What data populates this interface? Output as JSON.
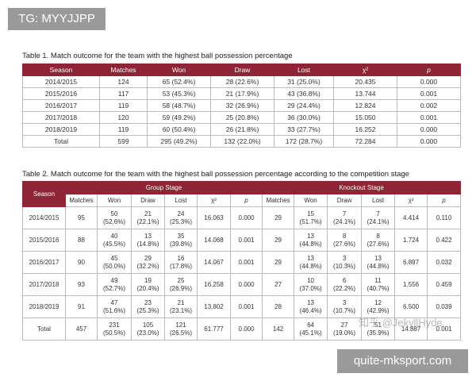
{
  "badge": "TG: MYYJJPP",
  "table1": {
    "title": "Table 1. Match outcome for the team with the highest ball possession percentage",
    "header": [
      "Season",
      "Matches",
      "Won",
      "Draw",
      "Lost",
      "χ²",
      "p"
    ],
    "rows": [
      [
        "2014/2015",
        "124",
        "65 (52.4%)",
        "28 (22.6%)",
        "31 (25.0%)",
        "20.435",
        "0.000"
      ],
      [
        "2015/2016",
        "117",
        "53 (45.3%)",
        "21 (17.9%)",
        "43 (36.8%)",
        "13.744",
        "0.001"
      ],
      [
        "2016/2017",
        "119",
        "58 (48.7%)",
        "32 (26.9%)",
        "29 (24.4%)",
        "12.824",
        "0.002"
      ],
      [
        "2017/2018",
        "120",
        "59 (49.2%)",
        "25 (20.8%)",
        "36 (30.0%)",
        "15.050",
        "0.001"
      ],
      [
        "2018/2019",
        "119",
        "60 (50.4%)",
        "26 (21.8%)",
        "33 (27.7%)",
        "16.252",
        "0.000"
      ],
      [
        "Total",
        "599",
        "295 (49.2%)",
        "132 (22.0%)",
        "172 (28.7%)",
        "72.284",
        "0.000"
      ]
    ]
  },
  "table2": {
    "title": "Table 2. Match outcome for the team with the highest ball possession percentage according to the competition stage",
    "header_groups": [
      "Season",
      "Group Stage",
      "Knockout Stage"
    ],
    "subheader": [
      "Matches",
      "Won",
      "Draw",
      "Lost",
      "χ²",
      "p",
      "Matches",
      "Won",
      "Draw",
      "Lost",
      "χ²",
      "p"
    ],
    "rows": [
      [
        "2014/2015",
        "95",
        "50\n(52.6%)",
        "21\n(22.1%)",
        "24\n(25.3%)",
        "16.063",
        "0.000",
        "29",
        "15\n(51.7%)",
        "7\n(24.1%)",
        "7\n(24.1%)",
        "4.414",
        "0.110"
      ],
      [
        "2015/2016",
        "88",
        "40\n(45.5%)",
        "13\n(14.8%)",
        "35\n(39.8%)",
        "14.068",
        "0.001",
        "29",
        "13\n(44.8%)",
        "8\n(27.6%)",
        "8\n(27.6%)",
        "1.724",
        "0.422"
      ],
      [
        "2016/2017",
        "90",
        "45\n(50.0%)",
        "29\n(32.2%)",
        "16\n(17.8%)",
        "14.067",
        "0.001",
        "29",
        "13\n(44.8%)",
        "3\n(10.3%)",
        "13\n(44.8%)",
        "6.897",
        "0.032"
      ],
      [
        "2017/2018",
        "93",
        "49\n(52.7%)",
        "19\n(20.4%)",
        "25\n(26.9%)",
        "16.258",
        "0.000",
        "27",
        "10\n(37.0%)",
        "6\n(22.2%)",
        "11\n(40.7%)",
        "1.556",
        "0.459"
      ],
      [
        "2018/2019",
        "91",
        "47\n(51.6%)",
        "23\n(25.3%)",
        "21\n(23.1%)",
        "13.802",
        "0.001",
        "28",
        "13\n(46.4%)",
        "3\n(10.7%)",
        "12\n(42.9%)",
        "6.500",
        "0.039"
      ],
      [
        "Total",
        "457",
        "231\n(50.5%)",
        "105\n(23.0%)",
        "121\n(26.5%)",
        "61.777",
        "0.000",
        "142",
        "64\n(45.1%)",
        "27\n(19.0%)",
        "51\n(35.9%)",
        "14.887",
        "0.001"
      ]
    ]
  },
  "watermark": "知乎 @JekyllHyde",
  "footer": "quite-mksport.com"
}
